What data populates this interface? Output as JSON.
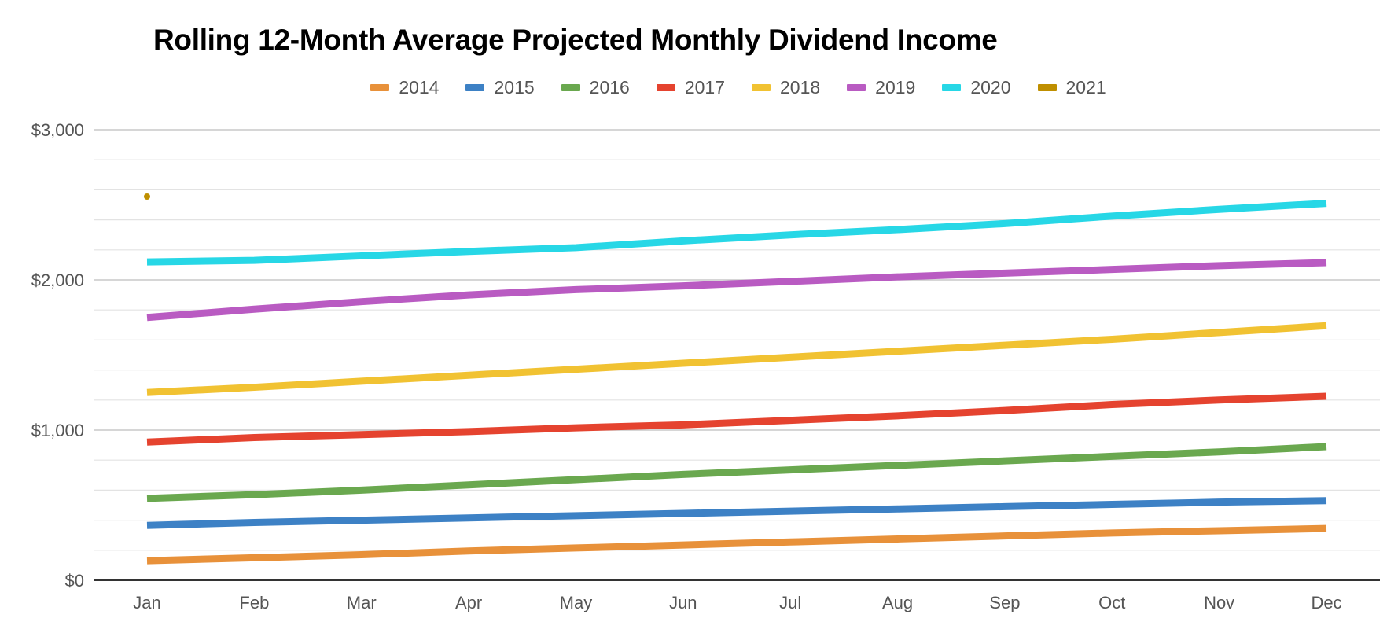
{
  "chart_data": {
    "type": "line",
    "title": "Rolling 12-Month Average Projected Monthly Dividend Income",
    "xlabel": "",
    "ylabel": "",
    "categories": [
      "Jan",
      "Feb",
      "Mar",
      "Apr",
      "May",
      "Jun",
      "Jul",
      "Aug",
      "Sep",
      "Oct",
      "Nov",
      "Dec"
    ],
    "ylim": [
      0,
      3000
    ],
    "yticks": [
      0,
      1000,
      2000,
      3000
    ],
    "ytick_labels": [
      "$0",
      "$1,000",
      "$2,000",
      "$3,000"
    ],
    "grid": true,
    "legend_position": "top",
    "series": [
      {
        "name": "2014",
        "color": "#e8913a",
        "values": [
          130,
          150,
          170,
          195,
          215,
          235,
          255,
          275,
          295,
          315,
          330,
          345
        ]
      },
      {
        "name": "2015",
        "color": "#3d81c5",
        "values": [
          365,
          385,
          400,
          415,
          430,
          445,
          460,
          475,
          490,
          505,
          520,
          530
        ]
      },
      {
        "name": "2016",
        "color": "#6aa84f",
        "values": [
          545,
          570,
          600,
          635,
          670,
          705,
          735,
          765,
          795,
          825,
          855,
          890
        ]
      },
      {
        "name": "2017",
        "color": "#e5432f",
        "values": [
          920,
          950,
          970,
          990,
          1015,
          1035,
          1065,
          1095,
          1130,
          1170,
          1200,
          1225
        ]
      },
      {
        "name": "2018",
        "color": "#f1c232",
        "values": [
          1250,
          1285,
          1325,
          1365,
          1405,
          1445,
          1485,
          1525,
          1565,
          1605,
          1650,
          1695
        ]
      },
      {
        "name": "2019",
        "color": "#b95bc2",
        "values": [
          1750,
          1805,
          1855,
          1900,
          1935,
          1960,
          1990,
          2020,
          2045,
          2070,
          2095,
          2115
        ]
      },
      {
        "name": "2020",
        "color": "#27d7e6",
        "values": [
          2120,
          2130,
          2160,
          2190,
          2215,
          2260,
          2300,
          2335,
          2375,
          2425,
          2470,
          2510
        ]
      },
      {
        "name": "2021",
        "color": "#bf8f00",
        "values": [
          2555,
          null,
          null,
          null,
          null,
          null,
          null,
          null,
          null,
          null,
          null,
          null
        ]
      }
    ]
  }
}
